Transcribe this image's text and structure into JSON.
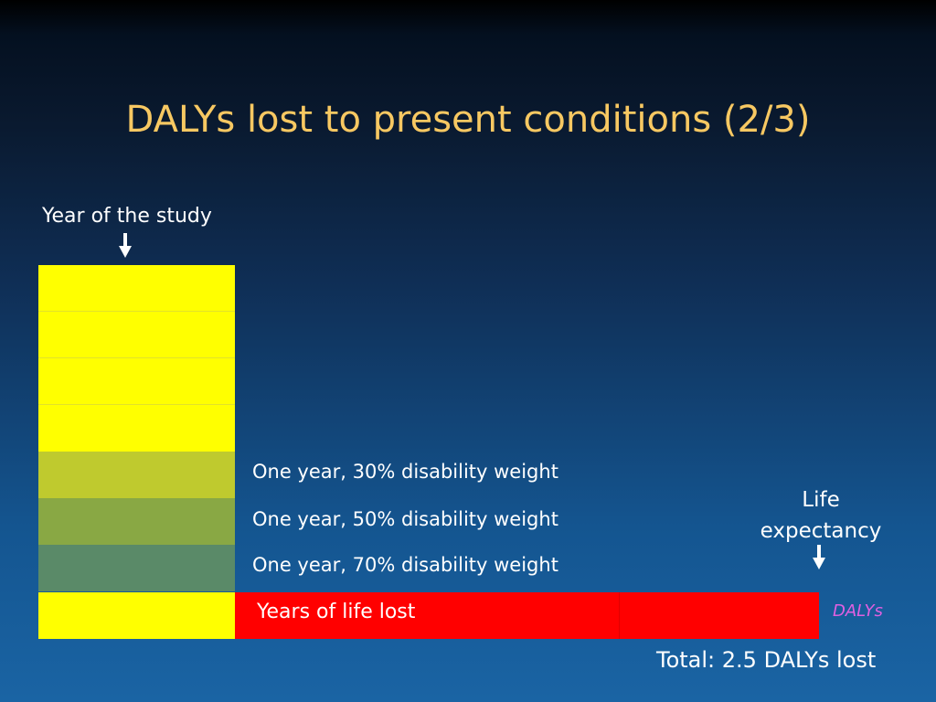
{
  "slide": {
    "title": "DALYs lost to present conditions (2/3)",
    "year_label": "Year of the study",
    "rows": [
      {
        "label": "",
        "color": "#ffff00"
      },
      {
        "label": "",
        "color": "#ffff00"
      },
      {
        "label": "",
        "color": "#ffff00"
      },
      {
        "label": "",
        "color": "#ffff00"
      },
      {
        "label": "One year, 30% disability weight",
        "color": "#bfca2e",
        "disability_weight": 0.3
      },
      {
        "label": "One year, 50% disability weight",
        "color": "#89a844",
        "disability_weight": 0.5
      },
      {
        "label": "One year, 70% disability weight",
        "color": "#5a8a68",
        "disability_weight": 0.7
      },
      {
        "label": "",
        "color": "#ffff00"
      }
    ],
    "yll_label": "Years of life lost",
    "yll_color": "#ff0000",
    "dalys_tag": "DALYs",
    "life_line1": "Life",
    "life_line2": "expectancy",
    "total": "Total: 2.5 DALYs lost"
  }
}
